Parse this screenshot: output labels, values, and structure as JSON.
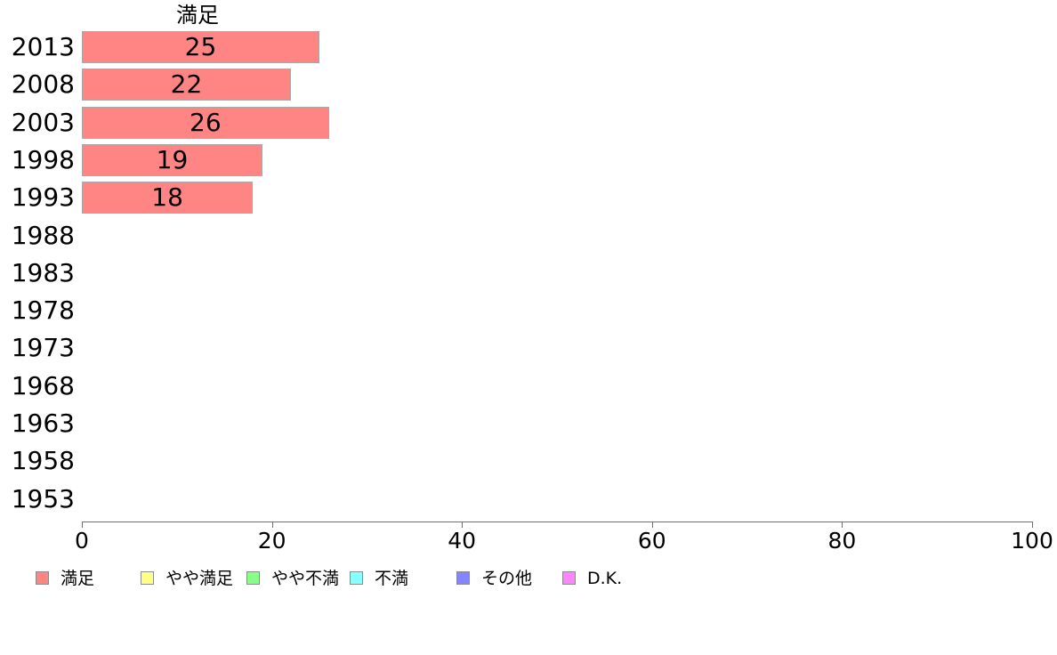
{
  "chart_data": {
    "type": "bar",
    "orientation": "horizontal",
    "title": "満足",
    "categories": [
      "2013",
      "2008",
      "2003",
      "1998",
      "1993",
      "1988",
      "1983",
      "1978",
      "1973",
      "1968",
      "1963",
      "1958",
      "1953"
    ],
    "series": [
      {
        "name": "満足",
        "values": [
          25,
          22,
          26,
          19,
          18,
          null,
          null,
          null,
          null,
          null,
          null,
          null,
          null
        ]
      }
    ],
    "bar_labels": [
      "25",
      "22",
      "26",
      "19",
      "18",
      "",
      "",
      "",
      "",
      "",
      "",
      "",
      ""
    ],
    "xlim": [
      0,
      100
    ],
    "x_ticks": [
      "0",
      "20",
      "40",
      "60",
      "80",
      "100"
    ],
    "x_tick_values": [
      0,
      20,
      40,
      60,
      80,
      100
    ],
    "grid": "off",
    "legend_position": "bottom",
    "colors": {
      "bar_fill": "#ff8585",
      "bar_border": "#a8a8a8",
      "axis": "#6e6e6e",
      "text": "#000000"
    },
    "legend": [
      {
        "label": "満足",
        "color": "#ff8585"
      },
      {
        "label": "やや満足",
        "color": "#ffff85"
      },
      {
        "label": "やや不満",
        "color": "#85ff85"
      },
      {
        "label": "不満",
        "color": "#85ffff"
      },
      {
        "label": "その他",
        "color": "#8585ff"
      },
      {
        "label": "D.K.",
        "color": "#ff85ff"
      }
    ]
  }
}
